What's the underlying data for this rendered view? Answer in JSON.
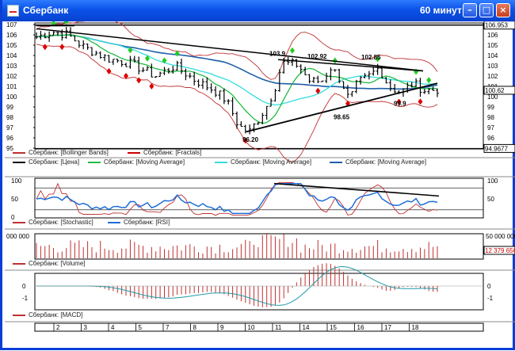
{
  "window": {
    "title": "Сбербанк",
    "period": "60 минут",
    "buttons": [
      "minimize",
      "maximize",
      "close"
    ]
  },
  "panels": {
    "price": {
      "y_ticks": [
        "107",
        "106",
        "105",
        "104",
        "103",
        "102",
        "101",
        "100",
        "99",
        "98",
        "97",
        "96",
        "95"
      ],
      "right_ticks": [
        "106",
        "105",
        "104",
        "103",
        "102",
        "101",
        "100",
        "99",
        "98",
        "97",
        "96",
        "95"
      ],
      "top_value": "106.953",
      "current_value": "100.62",
      "bottom_value": "94.9677",
      "annotations": [
        "103.9",
        "102.92",
        "102.85",
        "98.65",
        "99.9",
        "96.20"
      ],
      "legend": [
        {
          "label": "Сбербанк: [Bollinger Bands]",
          "color": "#c03030"
        },
        {
          "label": "Сбербанк: [Fractals]",
          "color": "#cc0000"
        },
        {
          "label": "Сбербанк: [Цена]",
          "color": "#000000"
        },
        {
          "label": "Сбербанк: [Moving Average]",
          "color": "#22bb44"
        },
        {
          "label": "Сбербанк: [Moving Average]",
          "color": "#33dddd"
        },
        {
          "label": "Сбербанк: [Moving Average]",
          "color": "#1e5fa8"
        }
      ]
    },
    "oscillator": {
      "y_ticks": [
        "100",
        "50",
        "0"
      ],
      "right_ticks": [
        "100",
        "50"
      ],
      "legend": [
        {
          "label": "Сбербанк: [Stochastic]",
          "color": "#c03030"
        },
        {
          "label": "Сбербанк: [RSI]",
          "color": "#1e6fd8"
        }
      ]
    },
    "volume": {
      "left_tick": "000 000",
      "right_tick": "50 000 000",
      "current_value": "12 379 656",
      "legend": [
        {
          "label": "Сбербанк: [Volume]",
          "color": "#c03030"
        }
      ]
    },
    "macd": {
      "y_ticks": [
        "0",
        "-1"
      ],
      "right_ticks": [
        "0",
        "-1"
      ],
      "legend": [
        {
          "label": "Сбербанк: [MACD]",
          "color": "#c03030"
        }
      ]
    }
  },
  "x_axis": {
    "days": [
      "2",
      "3",
      "4",
      "5",
      "7",
      "8",
      "9",
      "10",
      "11",
      "14",
      "15",
      "16",
      "17",
      "18"
    ]
  },
  "colors": {
    "title_bar": "#0a52e8",
    "price": "#000000",
    "bollinger": "#c03030",
    "fractal_up": "#22cc22",
    "fractal_down": "#dd0000",
    "ma_fast": "#22bb44",
    "ma_mid": "#33dddd",
    "ma_slow": "#1e5fa8",
    "volume": "#c03030",
    "macd": "#c03030"
  }
}
